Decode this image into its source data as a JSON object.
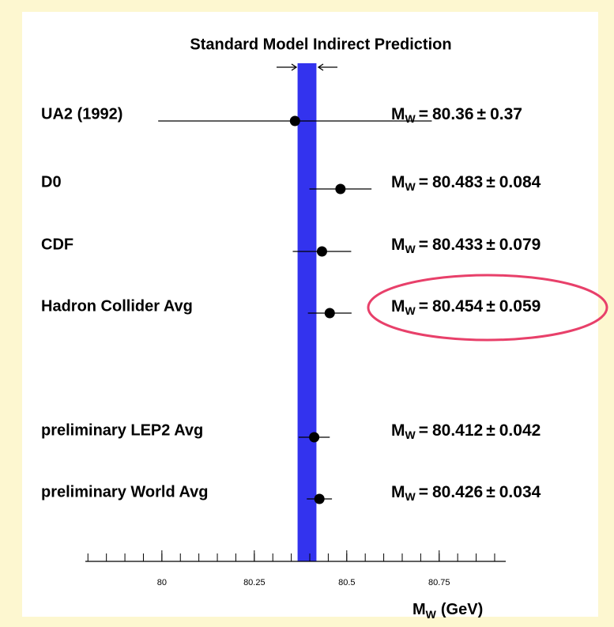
{
  "chart_data": {
    "type": "errorbar",
    "title": "Standard Model Indirect Prediction",
    "categories": [
      "UA2 (1992)",
      "D0",
      "CDF",
      "Hadron Collider Avg",
      "preliminary LEP2 Avg",
      "preliminary World Avg"
    ],
    "values": [
      80.36,
      80.483,
      80.433,
      80.454,
      80.412,
      80.426
    ],
    "errors": [
      0.37,
      0.084,
      0.079,
      0.059,
      0.042,
      0.034
    ],
    "label_symbol": "M",
    "label_subscript": "W",
    "label_equals": "=",
    "label_pm": "±",
    "band": [
      80.367,
      80.418
    ],
    "band_color": "#3333ee",
    "color": "#000000",
    "xlabel_unit": "(GeV)",
    "xlim": [
      79.793,
      80.93
    ],
    "xticks": [
      80,
      80.25,
      80.5,
      80.75
    ],
    "xminor_ticks": [
      79.8,
      79.85,
      79.9,
      79.95,
      80,
      80.05,
      80.1,
      80.15,
      80.2,
      80.25,
      80.3,
      80.35,
      80.4,
      80.45,
      80.5,
      80.55,
      80.6,
      80.65,
      80.7,
      80.75,
      80.8,
      80.85,
      80.9
    ]
  }
}
